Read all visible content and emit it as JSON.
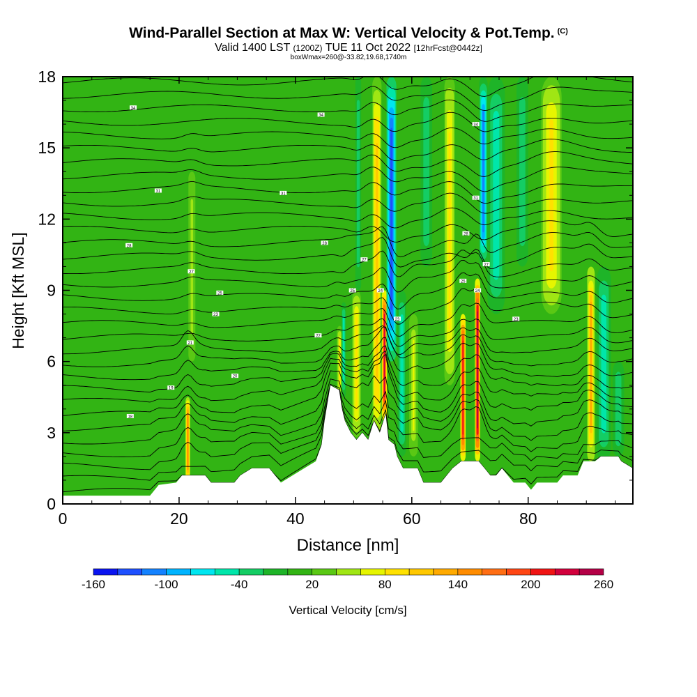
{
  "header": {
    "title": "Wind-Parallel Section at Max W: Vertical Velocity & Pot.Temp.",
    "copyright": "(C)",
    "valid_prefix": "Valid 1400 LST",
    "valid_zulu": "(1200Z)",
    "valid_date": "TUE 11 Oct 2022",
    "forecast_info": "[12hrFcst@0442z]",
    "box_info": "boxWmax=260@-33.82,19.68,1740m"
  },
  "chart_data": {
    "type": "heatmap",
    "xlabel": "Distance [nm]",
    "ylabel": "Height [Kft MSL]",
    "xlim": [
      0,
      98
    ],
    "ylim": [
      0,
      18
    ],
    "x_ticks": [
      "0",
      "20",
      "40",
      "60",
      "80"
    ],
    "x_tick_values": [
      0,
      20,
      40,
      60,
      80
    ],
    "y_ticks": [
      "0",
      "3",
      "6",
      "9",
      "12",
      "15",
      "18"
    ],
    "y_tick_values": [
      0,
      3,
      6,
      9,
      12,
      15,
      18
    ],
    "colorbar": {
      "label": "Vertical Velocity [cm/s]",
      "levels": [
        -160,
        -140,
        -120,
        -100,
        -80,
        -60,
        -40,
        -20,
        0,
        20,
        40,
        60,
        80,
        100,
        120,
        140,
        160,
        180,
        200,
        220,
        240,
        260
      ],
      "tick_labels": [
        "-160",
        "-100",
        "-40",
        "20",
        "80",
        "140",
        "200",
        "260"
      ],
      "tick_values": [
        -160,
        -100,
        -40,
        20,
        80,
        140,
        200,
        260
      ],
      "colors": [
        "#0a14f0",
        "#1e50ff",
        "#1482ff",
        "#00b4ff",
        "#00e6f0",
        "#00e6aa",
        "#14cd64",
        "#1eb428",
        "#32b414",
        "#5ac814",
        "#a0e614",
        "#e6f500",
        "#ffe100",
        "#ffc800",
        "#ffaa00",
        "#ff8c00",
        "#ff6e14",
        "#ff4614",
        "#f01414",
        "#d2003c",
        "#b40046"
      ]
    },
    "background_velocity": 10,
    "updraft_bands": [
      {
        "x": 21.5,
        "w": 0.8,
        "y0": 0.9,
        "y1": 4.5,
        "peak": 140
      },
      {
        "x": 22.2,
        "w": 1.2,
        "y0": 6,
        "y1": 14,
        "peak": 50
      },
      {
        "x": 47.6,
        "w": 1.0,
        "y0": 4.5,
        "y1": 7.5,
        "peak": 80
      },
      {
        "x": 50.5,
        "w": 1.5,
        "y0": 2.8,
        "y1": 9,
        "peak": 90
      },
      {
        "x": 54,
        "w": 1.6,
        "y0": 2.5,
        "y1": 18,
        "peak": 110
      },
      {
        "x": 55.3,
        "w": 0.9,
        "y0": 3.5,
        "y1": 9,
        "peak": 220
      },
      {
        "x": 60.3,
        "w": 1.5,
        "y0": 2,
        "y1": 8,
        "peak": 60
      },
      {
        "x": 66.5,
        "w": 1.8,
        "y0": 5,
        "y1": 18,
        "peak": 85
      },
      {
        "x": 68.8,
        "w": 0.9,
        "y0": 1.8,
        "y1": 8,
        "peak": 210
      },
      {
        "x": 71.3,
        "w": 0.9,
        "y0": 1.8,
        "y1": 9.5,
        "peak": 250
      },
      {
        "x": 84,
        "w": 3.5,
        "y0": 8,
        "y1": 18,
        "peak": 90
      },
      {
        "x": 90.8,
        "w": 1.3,
        "y0": 1.8,
        "y1": 10,
        "peak": 130
      }
    ],
    "downdraft_bands": [
      {
        "x": 48.3,
        "w": 0.8,
        "y0": 4.5,
        "y1": 8.5,
        "peak": -60
      },
      {
        "x": 50.8,
        "w": 1.0,
        "y0": 9,
        "y1": 18,
        "peak": -40
      },
      {
        "x": 56.5,
        "w": 1.7,
        "y0": 6,
        "y1": 18,
        "peak": -140
      },
      {
        "x": 58.3,
        "w": 1.5,
        "y0": 2,
        "y1": 9,
        "peak": -60
      },
      {
        "x": 62.5,
        "w": 2.0,
        "y0": 10,
        "y1": 18,
        "peak": -40
      },
      {
        "x": 72.3,
        "w": 1.5,
        "y0": 10,
        "y1": 18,
        "peak": -110
      },
      {
        "x": 74.5,
        "w": 3.0,
        "y0": 8,
        "y1": 18,
        "peak": -50
      },
      {
        "x": 79,
        "w": 2.0,
        "y0": 10,
        "y1": 18,
        "peak": -35
      },
      {
        "x": 93,
        "w": 2.5,
        "y0": 1.8,
        "y1": 10,
        "peak": -60
      },
      {
        "x": 95.5,
        "w": 2.0,
        "y0": 2,
        "y1": 6,
        "peak": -40
      }
    ],
    "terrain": [
      [
        0,
        0.35
      ],
      [
        15,
        0.35
      ],
      [
        16.5,
        0.8
      ],
      [
        19.5,
        0.9
      ],
      [
        20.5,
        1.2
      ],
      [
        24.5,
        1.2
      ],
      [
        25.5,
        0.9
      ],
      [
        28.5,
        0.9
      ],
      [
        29.5,
        0.9
      ],
      [
        30.5,
        1.2
      ],
      [
        32.5,
        1.5
      ],
      [
        35.5,
        1.5
      ],
      [
        36.5,
        1.2
      ],
      [
        37.5,
        0.9
      ],
      [
        39.5,
        1.2
      ],
      [
        41.5,
        1.5
      ],
      [
        43.5,
        1.8
      ],
      [
        44.5,
        2.5
      ],
      [
        45,
        3.5
      ],
      [
        46,
        5.0
      ],
      [
        47.5,
        4.8
      ],
      [
        48,
        4.0
      ],
      [
        48.5,
        3.5
      ],
      [
        49.5,
        3.0
      ],
      [
        50.5,
        2.7
      ],
      [
        51.5,
        3.0
      ],
      [
        52.5,
        2.7
      ],
      [
        53.5,
        3.5
      ],
      [
        54.5,
        3.0
      ],
      [
        55.5,
        3.8
      ],
      [
        56,
        2.7
      ],
      [
        57,
        2.5
      ],
      [
        57.5,
        2.0
      ],
      [
        58.5,
        1.5
      ],
      [
        61,
        1.5
      ],
      [
        62,
        0.9
      ],
      [
        65,
        0.9
      ],
      [
        66,
        1.2
      ],
      [
        67,
        1.5
      ],
      [
        68.5,
        1.8
      ],
      [
        71.5,
        1.8
      ],
      [
        72.5,
        1.5
      ],
      [
        73.5,
        1.2
      ],
      [
        74.5,
        1.2
      ],
      [
        75.5,
        1.5
      ],
      [
        76.5,
        1.2
      ],
      [
        77.5,
        0.9
      ],
      [
        79.5,
        0.9
      ],
      [
        80.5,
        0.6
      ],
      [
        81.5,
        0.9
      ],
      [
        85,
        0.9
      ],
      [
        86,
        1.2
      ],
      [
        88.5,
        1.2
      ],
      [
        89.5,
        1.8
      ],
      [
        91.5,
        1.8
      ],
      [
        92.5,
        2.0
      ],
      [
        95.5,
        2.0
      ],
      [
        96,
        1.8
      ],
      [
        98,
        1.5
      ]
    ],
    "theta_contours": {
      "count": 32,
      "note": "potential temperature isolines",
      "labels": [
        {
          "x": 12.1,
          "y": 16.7,
          "text": "34"
        },
        {
          "x": 44.4,
          "y": 16.4,
          "text": "34"
        },
        {
          "x": 71.0,
          "y": 16.0,
          "text": "34"
        },
        {
          "x": 16.4,
          "y": 13.2,
          "text": "31"
        },
        {
          "x": 37.9,
          "y": 13.1,
          "text": "31"
        },
        {
          "x": 71.0,
          "y": 12.9,
          "text": "31"
        },
        {
          "x": 11.4,
          "y": 10.9,
          "text": "28"
        },
        {
          "x": 45.0,
          "y": 11.0,
          "text": "28"
        },
        {
          "x": 69.3,
          "y": 11.4,
          "text": "28"
        },
        {
          "x": 22.1,
          "y": 9.8,
          "text": "27"
        },
        {
          "x": 51.8,
          "y": 10.3,
          "text": "27"
        },
        {
          "x": 72.8,
          "y": 10.1,
          "text": "27"
        },
        {
          "x": 27.0,
          "y": 8.9,
          "text": "25"
        },
        {
          "x": 49.8,
          "y": 9.0,
          "text": "25"
        },
        {
          "x": 68.8,
          "y": 9.4,
          "text": "25"
        },
        {
          "x": 54.6,
          "y": 9.0,
          "text": "24"
        },
        {
          "x": 71.3,
          "y": 9.0,
          "text": "24"
        },
        {
          "x": 26.3,
          "y": 8.0,
          "text": "23"
        },
        {
          "x": 57.5,
          "y": 7.8,
          "text": "23"
        },
        {
          "x": 77.9,
          "y": 7.8,
          "text": "23"
        },
        {
          "x": 43.9,
          "y": 7.1,
          "text": "22"
        },
        {
          "x": 21.9,
          "y": 6.8,
          "text": "21"
        },
        {
          "x": 29.6,
          "y": 5.4,
          "text": "20"
        },
        {
          "x": 18.6,
          "y": 4.9,
          "text": "19"
        },
        {
          "x": 11.6,
          "y": 3.7,
          "text": "18"
        }
      ]
    }
  }
}
